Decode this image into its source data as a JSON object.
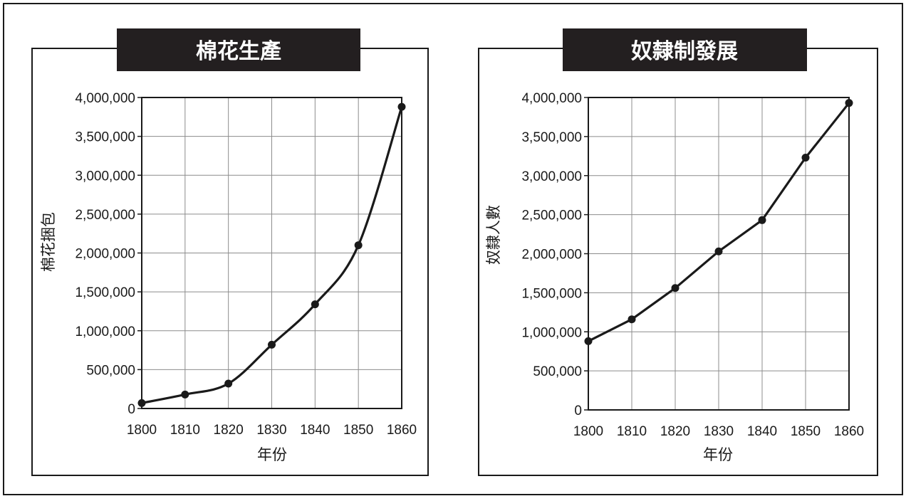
{
  "colors": {
    "ink": "#1a1a1a",
    "grid": "#8c8c8c",
    "title_bg": "#231f20",
    "title_text": "#ffffff",
    "background": "#ffffff"
  },
  "chart_data": [
    {
      "type": "line",
      "title": "棉花生產",
      "xlabel": "年份",
      "ylabel": "棉花捆包",
      "x": [
        1800,
        1810,
        1820,
        1830,
        1840,
        1850,
        1860
      ],
      "series": [
        {
          "values": [
            70000,
            180000,
            320000,
            820000,
            1340000,
            2100000,
            3880000
          ]
        }
      ],
      "xticks": [
        "1800",
        "1810",
        "1820",
        "1830",
        "1840",
        "1850",
        "1860"
      ],
      "yticks": [
        "0",
        "500,000",
        "1,000,000",
        "1,500,000",
        "2,000,000",
        "2,500,000",
        "3,000,000",
        "3,500,000",
        "4,000,000"
      ],
      "ylim": [
        0,
        4000000
      ],
      "xlim": [
        1800,
        1860
      ],
      "grid": true,
      "smooth": true
    },
    {
      "type": "line",
      "title": "奴隸制發展",
      "xlabel": "年份",
      "ylabel": "奴隸人數",
      "x": [
        1800,
        1810,
        1820,
        1830,
        1840,
        1850,
        1860
      ],
      "series": [
        {
          "values": [
            880000,
            1160000,
            1560000,
            2030000,
            2430000,
            3230000,
            3930000
          ]
        }
      ],
      "xticks": [
        "1800",
        "1810",
        "1820",
        "1830",
        "1840",
        "1850",
        "1860"
      ],
      "yticks": [
        "0",
        "500,000",
        "1,000,000",
        "1,500,000",
        "2,000,000",
        "2,500,000",
        "3,000,000",
        "3,500,000",
        "4,000,000"
      ],
      "ylim": [
        0,
        4000000
      ],
      "xlim": [
        1800,
        1860
      ],
      "grid": true,
      "smooth": false
    }
  ]
}
